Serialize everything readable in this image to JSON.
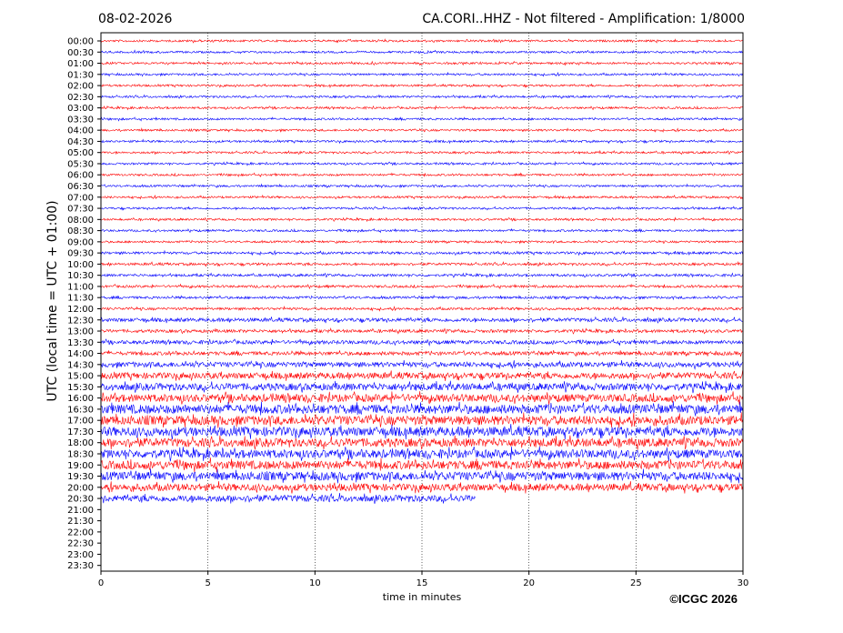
{
  "header": {
    "date": "08-02-2026",
    "title": "CA.CORI..HHZ - Not filtered - Amplification: 1/8000"
  },
  "footer": {
    "copyright": "©ICGC 2026"
  },
  "colors": {
    "odd_trace": "#ff0000",
    "even_trace": "#0000ff",
    "axis": "#000000",
    "grid": "#000000"
  },
  "chart_data": {
    "type": "line",
    "xlabel": "time in minutes",
    "ylabel": "UTC (local time = UTC + 01:00)",
    "xlim": [
      0,
      30
    ],
    "xticks": [
      0,
      5,
      10,
      15,
      20,
      25,
      30
    ],
    "grid": "vertical dotted lines at x ticks",
    "rows": [
      {
        "label": "00:00",
        "color": "red",
        "end_min": 30,
        "amplitude": 0.1
      },
      {
        "label": "00:30",
        "color": "blue",
        "end_min": 30,
        "amplitude": 0.1
      },
      {
        "label": "01:00",
        "color": "red",
        "end_min": 30,
        "amplitude": 0.1
      },
      {
        "label": "01:30",
        "color": "blue",
        "end_min": 30,
        "amplitude": 0.1
      },
      {
        "label": "02:00",
        "color": "red",
        "end_min": 30,
        "amplitude": 0.1
      },
      {
        "label": "02:30",
        "color": "blue",
        "end_min": 30,
        "amplitude": 0.1
      },
      {
        "label": "03:00",
        "color": "red",
        "end_min": 30,
        "amplitude": 0.1
      },
      {
        "label": "03:30",
        "color": "blue",
        "end_min": 30,
        "amplitude": 0.1
      },
      {
        "label": "04:00",
        "color": "red",
        "end_min": 30,
        "amplitude": 0.1
      },
      {
        "label": "04:30",
        "color": "blue",
        "end_min": 30,
        "amplitude": 0.1
      },
      {
        "label": "05:00",
        "color": "red",
        "end_min": 30,
        "amplitude": 0.1
      },
      {
        "label": "05:30",
        "color": "blue",
        "end_min": 30,
        "amplitude": 0.1
      },
      {
        "label": "06:00",
        "color": "red",
        "end_min": 30,
        "amplitude": 0.1
      },
      {
        "label": "06:30",
        "color": "blue",
        "end_min": 30,
        "amplitude": 0.1
      },
      {
        "label": "07:00",
        "color": "red",
        "end_min": 30,
        "amplitude": 0.1
      },
      {
        "label": "07:30",
        "color": "blue",
        "end_min": 30,
        "amplitude": 0.1
      },
      {
        "label": "08:00",
        "color": "red",
        "end_min": 30,
        "amplitude": 0.1
      },
      {
        "label": "08:30",
        "color": "blue",
        "end_min": 30,
        "amplitude": 0.1
      },
      {
        "label": "09:00",
        "color": "red",
        "end_min": 30,
        "amplitude": 0.1
      },
      {
        "label": "09:30",
        "color": "blue",
        "end_min": 30,
        "amplitude": 0.12
      },
      {
        "label": "10:00",
        "color": "red",
        "end_min": 30,
        "amplitude": 0.12
      },
      {
        "label": "10:30",
        "color": "blue",
        "end_min": 30,
        "amplitude": 0.12
      },
      {
        "label": "11:00",
        "color": "red",
        "end_min": 30,
        "amplitude": 0.12
      },
      {
        "label": "11:30",
        "color": "blue",
        "end_min": 30,
        "amplitude": 0.12
      },
      {
        "label": "12:00",
        "color": "red",
        "end_min": 30,
        "amplitude": 0.12
      },
      {
        "label": "12:30",
        "color": "blue",
        "end_min": 30,
        "amplitude": 0.18
      },
      {
        "label": "13:00",
        "color": "red",
        "end_min": 30,
        "amplitude": 0.15
      },
      {
        "label": "13:30",
        "color": "blue",
        "end_min": 30,
        "amplitude": 0.18
      },
      {
        "label": "14:00",
        "color": "red",
        "end_min": 30,
        "amplitude": 0.18
      },
      {
        "label": "14:30",
        "color": "blue",
        "end_min": 30,
        "amplitude": 0.25
      },
      {
        "label": "15:00",
        "color": "red",
        "end_min": 30,
        "amplitude": 0.3
      },
      {
        "label": "15:30",
        "color": "blue",
        "end_min": 30,
        "amplitude": 0.35
      },
      {
        "label": "16:00",
        "color": "red",
        "end_min": 30,
        "amplitude": 0.38
      },
      {
        "label": "16:30",
        "color": "blue",
        "end_min": 30,
        "amplitude": 0.45
      },
      {
        "label": "17:00",
        "color": "red",
        "end_min": 30,
        "amplitude": 0.45
      },
      {
        "label": "17:30",
        "color": "blue",
        "end_min": 30,
        "amplitude": 0.45
      },
      {
        "label": "18:00",
        "color": "red",
        "end_min": 30,
        "amplitude": 0.42
      },
      {
        "label": "18:30",
        "color": "blue",
        "end_min": 30,
        "amplitude": 0.42
      },
      {
        "label": "19:00",
        "color": "red",
        "end_min": 30,
        "amplitude": 0.42
      },
      {
        "label": "19:30",
        "color": "blue",
        "end_min": 30,
        "amplitude": 0.42
      },
      {
        "label": "20:00",
        "color": "red",
        "end_min": 30,
        "amplitude": 0.35
      },
      {
        "label": "20:30",
        "color": "blue",
        "end_min": 17.5,
        "amplitude": 0.32
      },
      {
        "label": "21:00",
        "color": "red",
        "end_min": 0,
        "amplitude": 0
      },
      {
        "label": "21:30",
        "color": "blue",
        "end_min": 0,
        "amplitude": 0
      },
      {
        "label": "22:00",
        "color": "red",
        "end_min": 0,
        "amplitude": 0
      },
      {
        "label": "22:30",
        "color": "blue",
        "end_min": 0,
        "amplitude": 0
      },
      {
        "label": "23:00",
        "color": "red",
        "end_min": 0,
        "amplitude": 0
      },
      {
        "label": "23:30",
        "color": "blue",
        "end_min": 0,
        "amplitude": 0
      }
    ]
  }
}
